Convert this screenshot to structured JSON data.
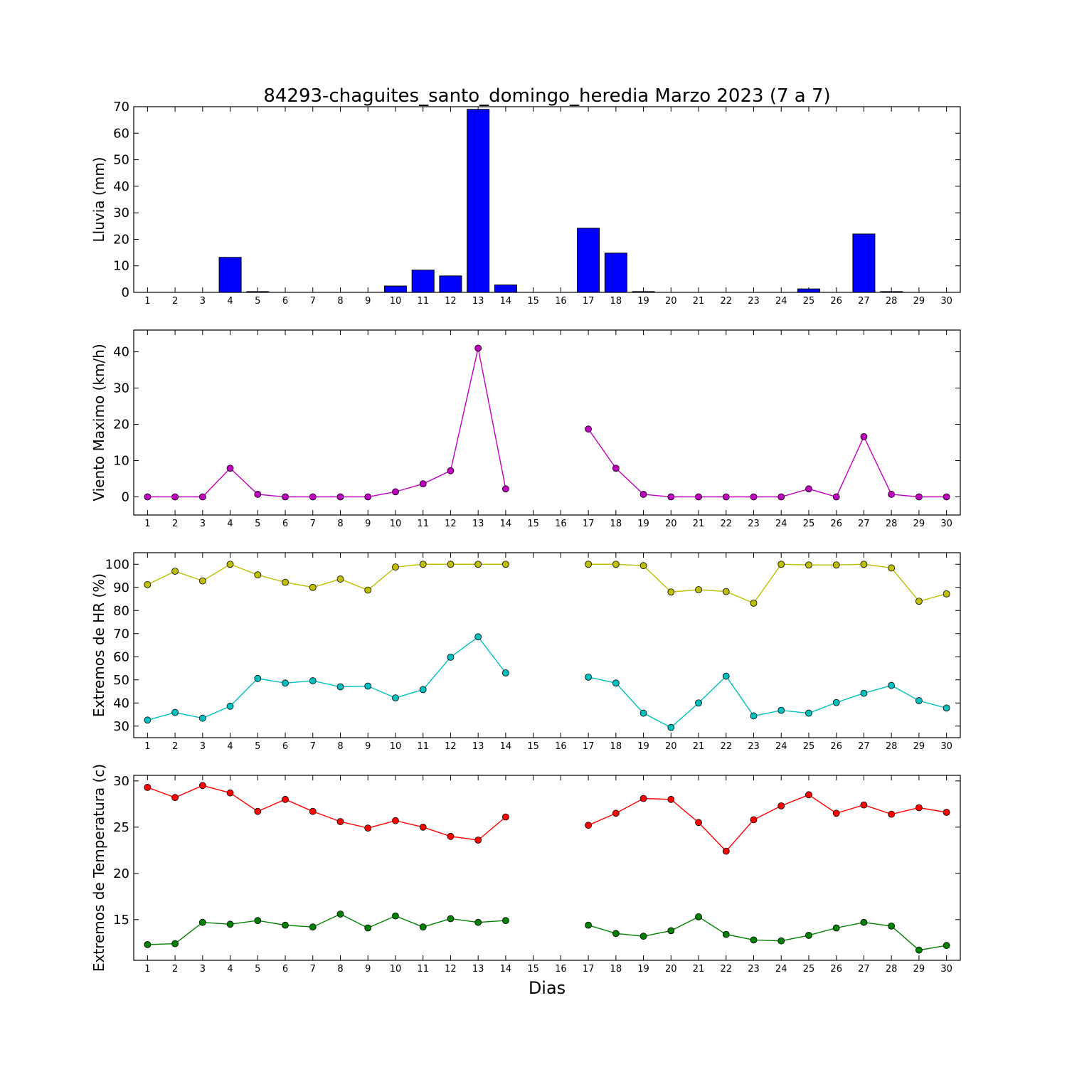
{
  "figure": {
    "title": "84293-chaguites_santo_domingo_heredia Marzo 2023  (7 a 7)",
    "xlabel": "Dias"
  },
  "chart_data": [
    {
      "type": "bar",
      "ylabel": "Lluvia (mm)",
      "ylim": [
        0,
        70
      ],
      "yticks": [
        0,
        10,
        20,
        30,
        40,
        50,
        60,
        70
      ],
      "categories": [
        1,
        2,
        3,
        4,
        5,
        6,
        7,
        8,
        9,
        10,
        11,
        12,
        13,
        14,
        15,
        16,
        17,
        18,
        19,
        20,
        21,
        22,
        23,
        24,
        25,
        26,
        27,
        28,
        29,
        30
      ],
      "values": [
        0,
        0,
        0,
        13.2,
        0.3,
        0,
        0,
        0,
        0,
        2.4,
        8.4,
        6.2,
        69,
        2.8,
        0,
        0,
        24.2,
        14.8,
        0.3,
        0,
        0,
        0,
        0,
        0,
        1.3,
        0,
        22,
        0.3,
        0,
        0
      ],
      "color": "#0000ff"
    },
    {
      "type": "line",
      "ylabel": "Viento Maximo (km/h)",
      "ylim": [
        -5,
        46
      ],
      "yticks": [
        0,
        10,
        20,
        30,
        40
      ],
      "categories": [
        1,
        2,
        3,
        4,
        5,
        6,
        7,
        8,
        9,
        10,
        11,
        12,
        13,
        14,
        15,
        16,
        17,
        18,
        19,
        20,
        21,
        22,
        23,
        24,
        25,
        26,
        27,
        28,
        29,
        30
      ],
      "series": [
        {
          "values": [
            0,
            0,
            0,
            7.9,
            0.7,
            0,
            0,
            0,
            0,
            1.4,
            3.6,
            7.2,
            41,
            2.2,
            null,
            null,
            18.7,
            7.9,
            0.7,
            0,
            0,
            0,
            0,
            0,
            2.2,
            0,
            16.6,
            0.7,
            0,
            0
          ],
          "color": "#bf00bf"
        }
      ]
    },
    {
      "type": "line",
      "ylabel": "Extremos de HR (%)",
      "ylim": [
        25,
        105
      ],
      "yticks": [
        30,
        40,
        50,
        60,
        70,
        80,
        90,
        100
      ],
      "categories": [
        1,
        2,
        3,
        4,
        5,
        6,
        7,
        8,
        9,
        10,
        11,
        12,
        13,
        14,
        15,
        16,
        17,
        18,
        19,
        20,
        21,
        22,
        23,
        24,
        25,
        26,
        27,
        28,
        29,
        30
      ],
      "series": [
        {
          "values": [
            91.2,
            97,
            92.8,
            100,
            95.4,
            92.2,
            90,
            93.6,
            88.8,
            98.8,
            100,
            100,
            100,
            100,
            null,
            null,
            100,
            100,
            99.4,
            88,
            89,
            88.2,
            83.2,
            100,
            99.7,
            99.7,
            100,
            98.4,
            84,
            87.2
          ],
          "color": "#bfbf00"
        },
        {
          "values": [
            32.6,
            35.9,
            33.4,
            38.6,
            50.6,
            48.6,
            49.6,
            47,
            47.3,
            42.2,
            45.8,
            59.8,
            68.6,
            53,
            null,
            null,
            51.2,
            48.6,
            35.6,
            29.4,
            40,
            51.6,
            34.4,
            36.8,
            35.6,
            40.2,
            44.2,
            47.6,
            41,
            37.8
          ],
          "color": "#00bfbf"
        }
      ]
    },
    {
      "type": "line",
      "ylabel": "Extremos de Temperatura (c)",
      "ylim": [
        10.6,
        30.6
      ],
      "yticks": [
        15,
        20,
        25,
        30
      ],
      "categories": [
        1,
        2,
        3,
        4,
        5,
        6,
        7,
        8,
        9,
        10,
        11,
        12,
        13,
        14,
        15,
        16,
        17,
        18,
        19,
        20,
        21,
        22,
        23,
        24,
        25,
        26,
        27,
        28,
        29,
        30
      ],
      "series": [
        {
          "values": [
            29.3,
            28.2,
            29.5,
            28.7,
            26.7,
            28,
            26.7,
            25.6,
            24.9,
            25.7,
            25,
            24,
            23.6,
            26.1,
            null,
            null,
            25.2,
            26.5,
            28.1,
            28,
            25.5,
            22.4,
            25.8,
            27.3,
            28.5,
            26.5,
            27.4,
            26.4,
            27.1,
            26.6
          ],
          "color": "#ff0000"
        },
        {
          "values": [
            12.3,
            12.4,
            14.7,
            14.5,
            14.9,
            14.4,
            14.2,
            15.6,
            14.1,
            15.4,
            14.2,
            15.1,
            14.7,
            14.9,
            null,
            null,
            14.4,
            13.5,
            13.2,
            13.8,
            15.3,
            13.4,
            12.8,
            12.7,
            13.3,
            14.1,
            14.7,
            14.3,
            11.7,
            12.2
          ],
          "color": "#008000"
        }
      ]
    }
  ]
}
